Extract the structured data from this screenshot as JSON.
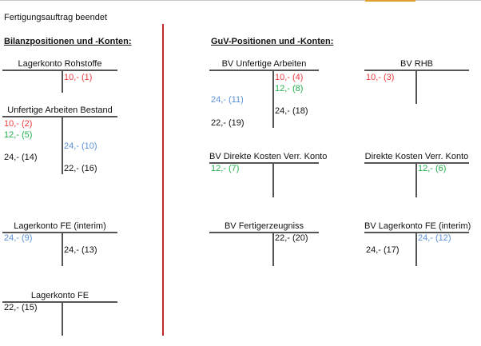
{
  "title": "Fertigungsauftrag beendet",
  "bilanz": {
    "heading": "Bilanzpositionen und -Konten:",
    "accounts": [
      {
        "title": "Lagerkonto Rohstoffe",
        "entries": [
          {
            "side": "right",
            "text": "10,- (1)",
            "color": "red"
          }
        ]
      },
      {
        "title": "Unfertige Arbeiten Bestand",
        "entries": [
          {
            "side": "left",
            "text": "10,- (2)",
            "color": "red"
          },
          {
            "side": "left",
            "text": "12,- (5)",
            "color": "green"
          },
          {
            "side": "right",
            "text": "24,- (10)",
            "color": "blue"
          },
          {
            "side": "left",
            "text": "24,- (14)",
            "color": "black"
          },
          {
            "side": "right",
            "text": "22,- (16)",
            "color": "black"
          }
        ]
      },
      {
        "title": "Lagerkonto FE (interim)",
        "entries": [
          {
            "side": "left",
            "text": "24,- (9)",
            "color": "blue"
          },
          {
            "side": "right",
            "text": "24,- (13)",
            "color": "black"
          }
        ]
      },
      {
        "title": "Lagerkonto FE",
        "entries": [
          {
            "side": "left",
            "text": "22,- (15)",
            "color": "black"
          }
        ]
      }
    ]
  },
  "guv": {
    "heading": "GuV-Positionen und -Konten:",
    "accounts": [
      {
        "title": "BV Unfertige Arbeiten",
        "entries": [
          {
            "side": "right",
            "text": "10,- (4)",
            "color": "red"
          },
          {
            "side": "right",
            "text": "12,- (8)",
            "color": "green"
          },
          {
            "side": "left",
            "text": "24,- (11)",
            "color": "blue"
          },
          {
            "side": "right",
            "text": "24,- (18)",
            "color": "black"
          },
          {
            "side": "left",
            "text": "22,- (19)",
            "color": "black"
          }
        ]
      },
      {
        "title": "BV RHB",
        "entries": [
          {
            "side": "left",
            "text": "10,- (3)",
            "color": "red"
          }
        ]
      },
      {
        "title": "BV Direkte Kosten Verr. Konto",
        "entries": [
          {
            "side": "left",
            "text": "12,- (7)",
            "color": "green"
          }
        ]
      },
      {
        "title": "Direkte Kosten Verr. Konto",
        "entries": [
          {
            "side": "right",
            "text": "12,- (6)",
            "color": "green"
          }
        ]
      },
      {
        "title": "BV Fertigerzeugniss",
        "entries": [
          {
            "side": "right",
            "text": "22,- (20)",
            "color": "black"
          }
        ]
      },
      {
        "title": "BV Lagerkonto FE (interim)",
        "entries": [
          {
            "side": "right",
            "text": "24,- (12)",
            "color": "blue"
          },
          {
            "side": "left",
            "text": "24,- (17)",
            "color": "black"
          }
        ]
      }
    ]
  },
  "colors": {
    "red": "#f03c3c",
    "green": "#22b04e",
    "blue": "#5b8fd6",
    "divider": "#c0282a"
  }
}
